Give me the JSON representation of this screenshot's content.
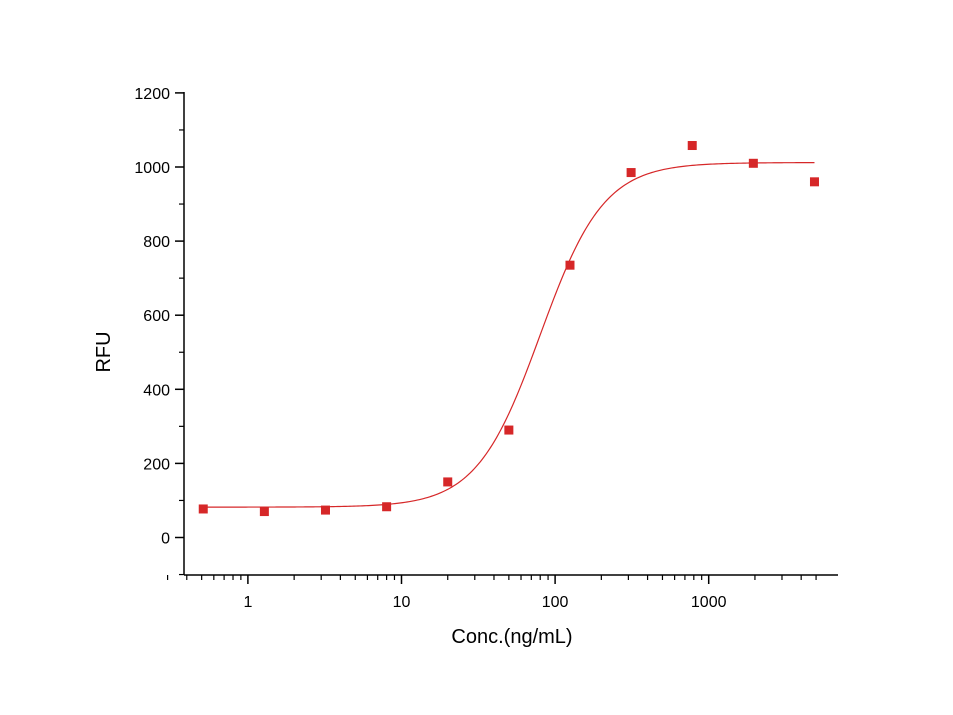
{
  "chart_data": {
    "type": "scatter",
    "xlabel": "Conc.(ng/mL)",
    "ylabel": "RFU",
    "xscale": "log",
    "xlim": [
      0.3,
      5500
    ],
    "ylim": [
      -100,
      1200
    ],
    "x_ticks": [
      1,
      10,
      100,
      1000
    ],
    "x_tick_labels": [
      "1",
      "10",
      "100",
      "1000"
    ],
    "y_ticks": [
      0,
      200,
      400,
      600,
      800,
      1000,
      1200
    ],
    "y_tick_labels": [
      "0",
      "200",
      "400",
      "600",
      "800",
      "1000",
      "1200"
    ],
    "grid": false,
    "legend": "none",
    "series": [
      {
        "type": "scatter",
        "color": "#d62728",
        "marker": "square",
        "x": [
          0.512,
          1.28,
          3.2,
          8.0,
          20.0,
          50.0,
          125.0,
          312.5,
          781.25,
          1953.1,
          4882.8
        ],
        "y": [
          77,
          70,
          74,
          83,
          150,
          290,
          735,
          985,
          1058,
          1010,
          960
        ]
      },
      {
        "type": "fit-line",
        "color": "#d62728",
        "model": "four-parameter logistic",
        "bottom": 82,
        "top": 1012,
        "ec50": 80,
        "hill": 2.1,
        "x_range": [
          0.512,
          4882.8
        ]
      }
    ]
  }
}
